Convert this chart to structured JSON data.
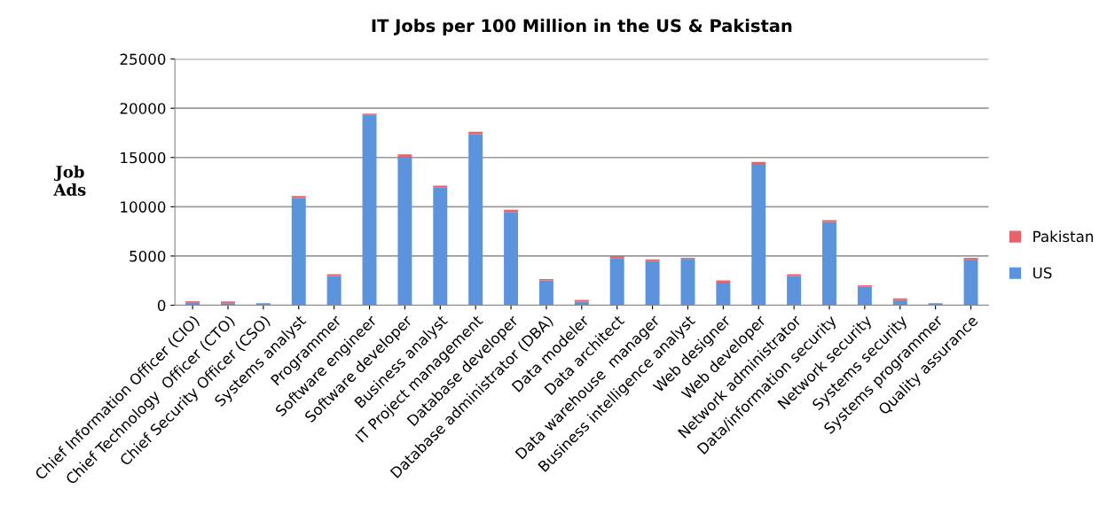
{
  "chart_data": {
    "type": "bar",
    "title": "IT Jobs per 100 Million in the US & Pakistan",
    "ylabel": "Job\nAds",
    "categories": [
      "Chief Information Officer (CIO)",
      "Chief Technology  Officer (CTO)",
      "Chief Security Officer (CSO)",
      "Systems analyst",
      "Programmer",
      "Software engineer",
      "Software developer",
      "Business analyst",
      "IT Project management",
      "Database developer",
      "Database administrator (DBA)",
      "Data modeler",
      "Data architect",
      "Data warehouse  manager",
      "Business intelligence analyst",
      "Web designer",
      "Web developer",
      "Network administrator",
      "Data/information security",
      "Network security",
      "Systems security",
      "Systems programmer",
      "Quality assurance"
    ],
    "stacked": true,
    "series": [
      {
        "name": "US",
        "color": "#5b93dc",
        "values": [
          300,
          210,
          210,
          10880,
          2960,
          19310,
          15040,
          11990,
          17340,
          9420,
          2510,
          360,
          4780,
          4480,
          4690,
          2210,
          14260,
          2960,
          8460,
          1880,
          510,
          210,
          4660
        ]
      },
      {
        "name": "Pakistan",
        "color": "#e8626a",
        "values": [
          100,
          180,
          null,
          210,
          180,
          150,
          270,
          150,
          270,
          270,
          150,
          180,
          210,
          180,
          120,
          300,
          300,
          180,
          180,
          150,
          180,
          null,
          150
        ]
      }
    ],
    "ylim": [
      0,
      25000
    ],
    "yticks": [
      0,
      5000,
      10000,
      15000,
      20000,
      25000
    ],
    "grid": "y",
    "legend": "right"
  }
}
